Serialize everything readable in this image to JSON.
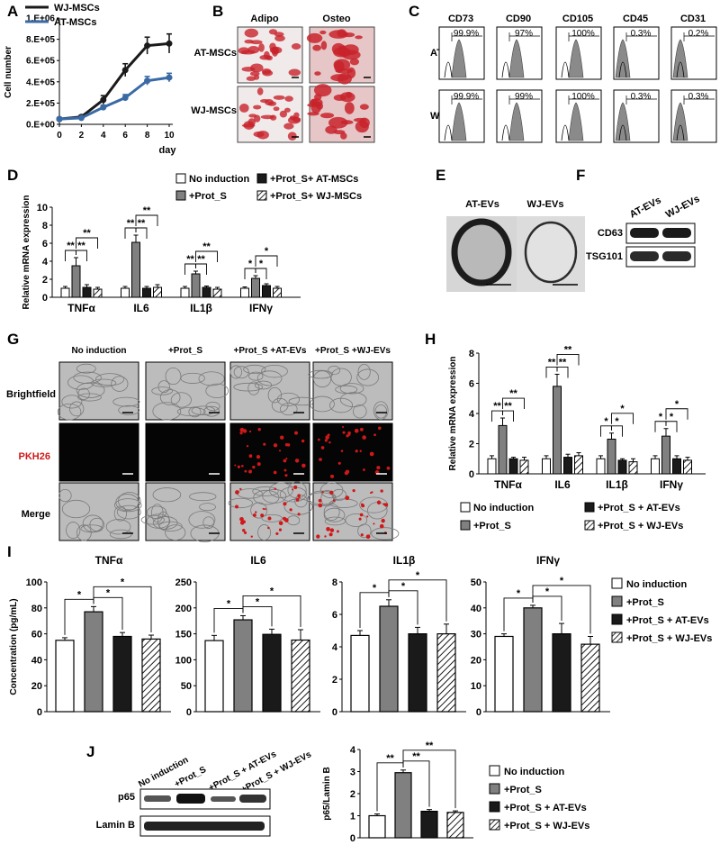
{
  "panel_letters": [
    "A",
    "B",
    "C",
    "D",
    "E",
    "F",
    "G",
    "H",
    "I",
    "J"
  ],
  "colors": {
    "wj_line": "#1a1a1a",
    "at_line": "#3a6aa4",
    "grey_bar": "#808080",
    "black_bar": "#1a1a1a",
    "white_bar": "#ffffff",
    "stain_red": "#c8232c",
    "flow_fill": "#8a8a8a",
    "pkh_red": "#d01818"
  },
  "panelB": {
    "columns": [
      "Adipo",
      "Osteo"
    ],
    "rows": [
      "AT-MSCs",
      "WJ-MSCs"
    ]
  },
  "panelC": {
    "markers": [
      "CD73",
      "CD90",
      "CD105",
      "CD45",
      "CD31"
    ],
    "rows": [
      "AT-MSCs",
      "WJ-MSCs"
    ],
    "values": [
      [
        "99.9%",
        "97%",
        "100%",
        "0.3%",
        "0.2%"
      ],
      [
        "99.9%",
        "99%",
        "100%",
        "0.3%",
        "0.3%"
      ]
    ]
  },
  "panelE": {
    "labels": [
      "AT-EVs",
      "WJ-EVs"
    ]
  },
  "panelF": {
    "lanes": [
      "AT-EVs",
      "WJ-EVs"
    ],
    "bands": [
      "CD63",
      "TSG101"
    ]
  },
  "panelG": {
    "columns": [
      "No induction",
      "+Prot_S",
      "+Prot_S +AT-EVs",
      "+Prot_S +WJ-EVs"
    ],
    "rows": [
      "Brightfield",
      "PKH26",
      "Merge"
    ]
  },
  "panelJ": {
    "lanes": [
      "No induction",
      "+Prot_S",
      "+Prot_S + AT-EVs",
      "+Prot_S + WJ-EVs"
    ],
    "bands": [
      "p65",
      "Lamin B"
    ]
  },
  "chart_data": [
    {
      "panel": "A",
      "type": "line",
      "xlabel": "day",
      "ylabel": "Cell number",
      "x": [
        0,
        2,
        4,
        6,
        8,
        10
      ],
      "xlim": [
        0,
        10
      ],
      "ylim": [
        0,
        1000000
      ],
      "yticks": [
        "0.E+00",
        "2.E+05",
        "4.E+05",
        "6.E+05",
        "8.E+05",
        "1.E+06"
      ],
      "xticks": [
        "0",
        "2",
        "4",
        "6",
        "8",
        "10"
      ],
      "series": [
        {
          "name": "WJ-MSCs",
          "values": [
            50000,
            70000,
            230000,
            510000,
            740000,
            760000
          ],
          "errors": [
            10000,
            15000,
            40000,
            60000,
            80000,
            90000
          ]
        },
        {
          "name": "AT-MSCs",
          "values": [
            50000,
            60000,
            160000,
            250000,
            410000,
            440000
          ],
          "errors": [
            8000,
            10000,
            20000,
            30000,
            40000,
            40000
          ]
        }
      ]
    },
    {
      "panel": "D",
      "type": "bar",
      "ylabel": "Relative mRNA expression",
      "ylim": [
        0,
        10
      ],
      "yticks": [
        "0",
        "2",
        "4",
        "6",
        "8",
        "10"
      ],
      "categories": [
        "TNFα",
        "IL6",
        "IL1β",
        "IFNγ"
      ],
      "series": [
        {
          "name": "No induction",
          "values": [
            1.0,
            1.0,
            1.0,
            1.0
          ],
          "errors": [
            0.2,
            0.2,
            0.2,
            0.15
          ]
        },
        {
          "name": "+Prot_S",
          "values": [
            3.5,
            6.1,
            2.6,
            2.1
          ],
          "errors": [
            0.9,
            0.8,
            0.3,
            0.3
          ]
        },
        {
          "name": "+Prot_S+ AT-MSCs",
          "values": [
            1.1,
            1.0,
            1.1,
            1.3
          ],
          "errors": [
            0.3,
            0.2,
            0.15,
            0.2
          ]
        },
        {
          "name": "+Prot_S+ WJ-MSCs",
          "values": [
            0.9,
            1.1,
            0.9,
            1.0
          ],
          "errors": [
            0.2,
            0.3,
            0.2,
            0.2
          ]
        }
      ],
      "significance": [
        {
          "group": 0,
          "from": 0,
          "to": 1,
          "label": "**"
        },
        {
          "group": 0,
          "from": 1,
          "to": 2,
          "label": "**"
        },
        {
          "group": 0,
          "from": 1,
          "to": 3,
          "label": "**"
        },
        {
          "group": 1,
          "from": 0,
          "to": 1,
          "label": "**"
        },
        {
          "group": 1,
          "from": 1,
          "to": 2,
          "label": "**"
        },
        {
          "group": 1,
          "from": 1,
          "to": 3,
          "label": "**"
        },
        {
          "group": 2,
          "from": 0,
          "to": 1,
          "label": "**"
        },
        {
          "group": 2,
          "from": 1,
          "to": 2,
          "label": "**"
        },
        {
          "group": 2,
          "from": 1,
          "to": 3,
          "label": "**"
        },
        {
          "group": 3,
          "from": 0,
          "to": 1,
          "label": "*"
        },
        {
          "group": 3,
          "from": 1,
          "to": 2,
          "label": "*"
        },
        {
          "group": 3,
          "from": 1,
          "to": 3,
          "label": "*"
        }
      ]
    },
    {
      "panel": "H",
      "type": "bar",
      "ylabel": "Relative mRNA expression",
      "ylim": [
        0,
        8
      ],
      "yticks": [
        "0",
        "2",
        "4",
        "6",
        "8"
      ],
      "categories": [
        "TNFα",
        "IL6",
        "IL1β",
        "IFNγ"
      ],
      "series": [
        {
          "name": "No induction",
          "values": [
            1.0,
            1.0,
            1.0,
            1.0
          ],
          "errors": [
            0.2,
            0.2,
            0.2,
            0.2
          ]
        },
        {
          "name": "+Prot_S",
          "values": [
            3.2,
            5.8,
            2.3,
            2.5
          ],
          "errors": [
            0.5,
            0.8,
            0.4,
            0.5
          ]
        },
        {
          "name": "+Prot_S + AT-EVs",
          "values": [
            1.0,
            1.1,
            0.9,
            1.0
          ],
          "errors": [
            0.1,
            0.2,
            0.1,
            0.2
          ]
        },
        {
          "name": "+Prot_S + WJ-EVs",
          "values": [
            0.9,
            1.2,
            0.8,
            0.9
          ],
          "errors": [
            0.2,
            0.2,
            0.2,
            0.2
          ]
        }
      ],
      "significance": [
        {
          "group": 0,
          "from": 0,
          "to": 1,
          "label": "**"
        },
        {
          "group": 0,
          "from": 1,
          "to": 2,
          "label": "**"
        },
        {
          "group": 0,
          "from": 1,
          "to": 3,
          "label": "**"
        },
        {
          "group": 1,
          "from": 0,
          "to": 1,
          "label": "**"
        },
        {
          "group": 1,
          "from": 1,
          "to": 2,
          "label": "**"
        },
        {
          "group": 1,
          "from": 1,
          "to": 3,
          "label": "**"
        },
        {
          "group": 2,
          "from": 0,
          "to": 1,
          "label": "*"
        },
        {
          "group": 2,
          "from": 1,
          "to": 2,
          "label": "*"
        },
        {
          "group": 2,
          "from": 1,
          "to": 3,
          "label": "*"
        },
        {
          "group": 3,
          "from": 0,
          "to": 1,
          "label": "*"
        },
        {
          "group": 3,
          "from": 1,
          "to": 2,
          "label": "*"
        },
        {
          "group": 3,
          "from": 1,
          "to": 3,
          "label": "*"
        }
      ]
    },
    {
      "panel": "I-TNFα",
      "type": "bar",
      "title": "TNFα",
      "ylabel": "Concentration (pg/mL)",
      "ylim": [
        0,
        100
      ],
      "yticks": [
        "0",
        "20",
        "40",
        "60",
        "80",
        "100"
      ],
      "categories": [
        "No induction",
        "+Prot_S",
        "+Prot_S + AT-EVs",
        "+Prot_S + WJ-EVs"
      ],
      "values": [
        55,
        77,
        58,
        56
      ],
      "errors": [
        2,
        4,
        3,
        3
      ],
      "significance": [
        {
          "from": 0,
          "to": 1,
          "label": "*"
        },
        {
          "from": 1,
          "to": 2,
          "label": "*"
        },
        {
          "from": 1,
          "to": 3,
          "label": "*"
        }
      ]
    },
    {
      "panel": "I-IL6",
      "type": "bar",
      "title": "IL6",
      "ylim": [
        0,
        250
      ],
      "yticks": [
        "0",
        "50",
        "100",
        "150",
        "200",
        "250"
      ],
      "categories": [
        "No induction",
        "+Prot_S",
        "+Prot_S + AT-EVs",
        "+Prot_S + WJ-EVs"
      ],
      "values": [
        137,
        177,
        149,
        138
      ],
      "errors": [
        10,
        8,
        10,
        20
      ],
      "significance": [
        {
          "from": 0,
          "to": 1,
          "label": "*"
        },
        {
          "from": 1,
          "to": 2,
          "label": "*"
        },
        {
          "from": 1,
          "to": 3,
          "label": "*"
        }
      ]
    },
    {
      "panel": "I-IL1β",
      "type": "bar",
      "title": "IL1β",
      "ylim": [
        0,
        8
      ],
      "yticks": [
        "0",
        "2",
        "4",
        "6",
        "8"
      ],
      "categories": [
        "No induction",
        "+Prot_S",
        "+Prot_S + AT-EVs",
        "+Prot_S + WJ-EVs"
      ],
      "values": [
        4.7,
        6.5,
        4.8,
        4.8
      ],
      "errors": [
        0.3,
        0.4,
        0.4,
        0.6
      ],
      "significance": [
        {
          "from": 0,
          "to": 1,
          "label": "*"
        },
        {
          "from": 1,
          "to": 2,
          "label": "*"
        },
        {
          "from": 1,
          "to": 3,
          "label": "*"
        }
      ]
    },
    {
      "panel": "I-IFNγ",
      "type": "bar",
      "title": "IFNγ",
      "ylim": [
        0,
        50
      ],
      "yticks": [
        "0",
        "10",
        "20",
        "30",
        "40",
        "50"
      ],
      "categories": [
        "No induction",
        "+Prot_S",
        "+Prot_S + AT-EVs",
        "+Prot_S + WJ-EVs"
      ],
      "values": [
        29,
        40,
        30,
        26
      ],
      "errors": [
        1,
        1,
        4,
        3
      ],
      "significance": [
        {
          "from": 0,
          "to": 1,
          "label": "*"
        },
        {
          "from": 1,
          "to": 2,
          "label": "*"
        },
        {
          "from": 1,
          "to": 3,
          "label": "*"
        }
      ]
    },
    {
      "panel": "J",
      "type": "bar",
      "ylabel": "p65/Lamin B",
      "ylim": [
        0,
        4
      ],
      "yticks": [
        "0",
        "1",
        "2",
        "3",
        "4"
      ],
      "categories": [
        "No induction",
        "+Prot_S",
        "+Prot_S + AT-EVs",
        "+Prot_S + WJ-EVs"
      ],
      "values": [
        1.0,
        2.95,
        1.2,
        1.15
      ],
      "errors": [
        0.08,
        0.12,
        0.08,
        0.07
      ],
      "significance": [
        {
          "from": 0,
          "to": 1,
          "label": "**"
        },
        {
          "from": 1,
          "to": 2,
          "label": "**"
        },
        {
          "from": 1,
          "to": 3,
          "label": "**"
        }
      ]
    }
  ],
  "legends": {
    "I": [
      "No induction",
      "+Prot_S",
      "+Prot_S + AT-EVs",
      "+Prot_S + WJ-EVs"
    ],
    "J": [
      "No induction",
      "+Prot_S",
      "+Prot_S + AT-EVs",
      "+Prot_S + WJ-EVs"
    ]
  }
}
